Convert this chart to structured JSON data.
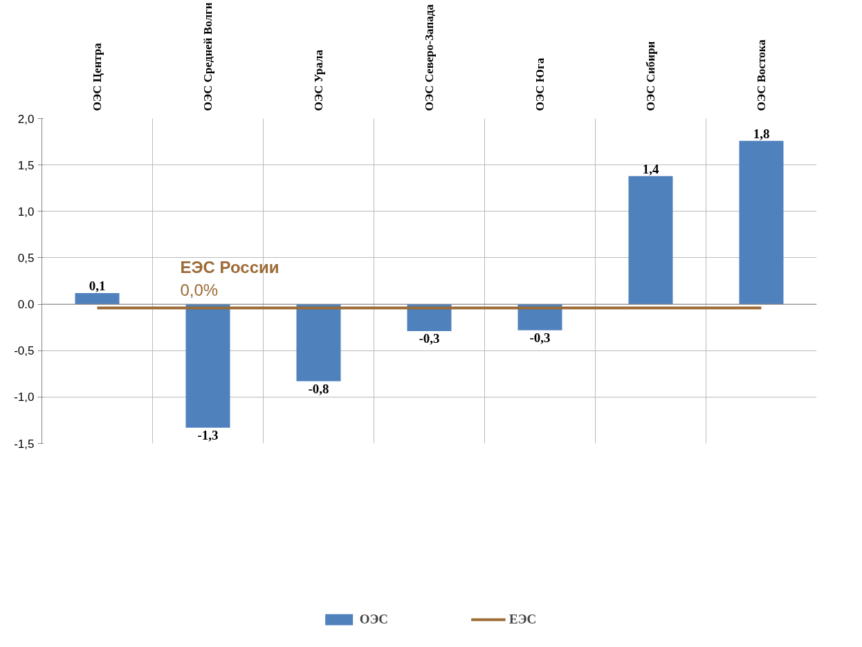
{
  "chart_data": {
    "type": "bar",
    "categories": [
      "ОЭС Центра",
      "ОЭС Средней Волги",
      "ОЭС Урала",
      "ОЭС Северо-Запада",
      "ОЭС Юга",
      "ОЭС Сибири",
      "ОЭС Востока"
    ],
    "series": [
      {
        "name": "ОЭС",
        "type": "bar",
        "color": "#4f81bd",
        "values": [
          0.12,
          -1.33,
          -0.83,
          -0.29,
          -0.28,
          1.38,
          1.76
        ],
        "value_labels": [
          "0,1",
          "-1,3",
          "-0,8",
          "-0,3",
          "-0,3",
          "1,4",
          "1,8"
        ]
      },
      {
        "name": "ЕЭС",
        "type": "line",
        "color": "#9c6a35",
        "values": [
          -0.04,
          -0.04,
          -0.04,
          -0.04,
          -0.04,
          -0.04,
          -0.04
        ]
      }
    ],
    "annotations": [
      "ЕЭС России",
      "0,0%"
    ],
    "ylim": [
      -1.5,
      2.0
    ],
    "yticks": [
      {
        "value": -1.5,
        "label": "-1,5"
      },
      {
        "value": -1.0,
        "label": "-1,0"
      },
      {
        "value": -0.5,
        "label": "-0,5"
      },
      {
        "value": 0,
        "label": "0.0"
      },
      {
        "value": 0.5,
        "label": "0,5"
      },
      {
        "value": 1.0,
        "label": "1,0"
      },
      {
        "value": 1.5,
        "label": "1,5"
      },
      {
        "value": 2.0,
        "label": "2,0"
      }
    ],
    "grid": true,
    "legend": "bottom",
    "line_style": "solid"
  }
}
